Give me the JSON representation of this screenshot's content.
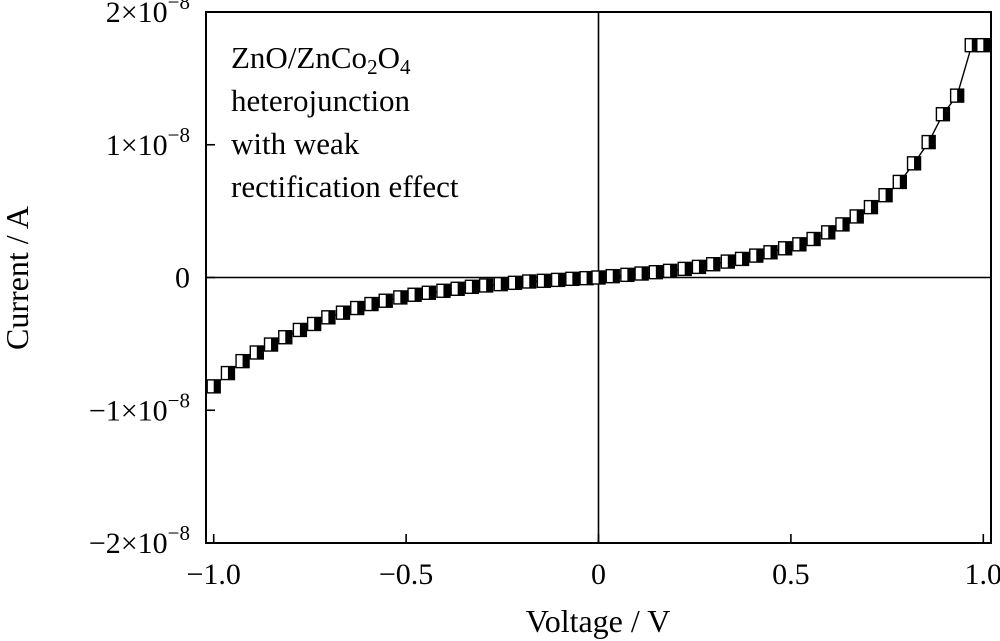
{
  "chart_data": {
    "type": "scatter",
    "xlabel": "Voltage / V",
    "ylabel": "Current / A",
    "xlim": [
      -1.02,
      1.02
    ],
    "ylim": [
      -2e-08,
      2e-08
    ],
    "x_ticks": [
      {
        "value": -1.0,
        "label": "−1.0"
      },
      {
        "value": -0.5,
        "label": "−0.5"
      },
      {
        "value": 0,
        "label": "0"
      },
      {
        "value": 0.5,
        "label": "0.5"
      },
      {
        "value": 1.0,
        "label": "1.0"
      }
    ],
    "y_ticks": [
      {
        "value": -2e-08,
        "mant": "−2×10",
        "exp": "−8"
      },
      {
        "value": -1e-08,
        "mant": "−1×10",
        "exp": "−8"
      },
      {
        "value": 0,
        "mant": "0",
        "exp": ""
      },
      {
        "value": 1e-08,
        "mant": "1×10",
        "exp": "−8"
      },
      {
        "value": 2e-08,
        "mant": "2×10",
        "exp": "−8"
      }
    ],
    "grid": false,
    "zero_lines": true,
    "annotation": {
      "line1_base": "ZnO/ZnCo",
      "line1_sub1": "2",
      "line1_mid": "O",
      "line1_sub2": "4",
      "line2": "heterojunction",
      "line3": "with weak",
      "line4": "rectification effect"
    },
    "series": [
      {
        "marker": "half-filled square",
        "x": [
          -1.0,
          -0.963,
          -0.925,
          -0.888,
          -0.851,
          -0.814,
          -0.776,
          -0.739,
          -0.702,
          -0.664,
          -0.627,
          -0.59,
          -0.553,
          -0.515,
          -0.478,
          -0.441,
          -0.403,
          -0.366,
          -0.329,
          -0.292,
          -0.254,
          -0.217,
          -0.18,
          -0.142,
          -0.105,
          -0.068,
          -0.031,
          0.0,
          0.037,
          0.075,
          0.112,
          0.149,
          0.186,
          0.224,
          0.261,
          0.298,
          0.336,
          0.373,
          0.41,
          0.447,
          0.485,
          0.522,
          0.559,
          0.597,
          0.634,
          0.671,
          0.708,
          0.746,
          0.783,
          0.82,
          0.858,
          0.895,
          0.932,
          0.97,
          1.0
        ],
        "y": [
          -8.2e-09,
          -7.2e-09,
          -6.3e-09,
          -5.65e-09,
          -5.05e-09,
          -4.5e-09,
          -3.95e-09,
          -3.5e-09,
          -3e-09,
          -2.65e-09,
          -2.3e-09,
          -2e-09,
          -1.75e-09,
          -1.5e-09,
          -1.3e-09,
          -1.15e-09,
          -1e-09,
          -8.5e-10,
          -7e-10,
          -6e-10,
          -5e-10,
          -4e-10,
          -3e-10,
          -2.5e-10,
          -1.8e-10,
          -1e-10,
          -5e-11,
          0.0,
          1e-10,
          2e-10,
          3e-10,
          4e-10,
          5e-10,
          6.5e-10,
          8e-10,
          1e-09,
          1.2e-09,
          1.4e-09,
          1.65e-09,
          1.9e-09,
          2.2e-09,
          2.5e-09,
          2.9e-09,
          3.4e-09,
          4e-09,
          4.6e-09,
          5.3e-09,
          6.2e-09,
          7.2e-09,
          8.6e-09,
          1.02e-08,
          1.23e-08,
          1.37e-08,
          1.75e-08,
          1.75e-08
        ]
      }
    ]
  }
}
